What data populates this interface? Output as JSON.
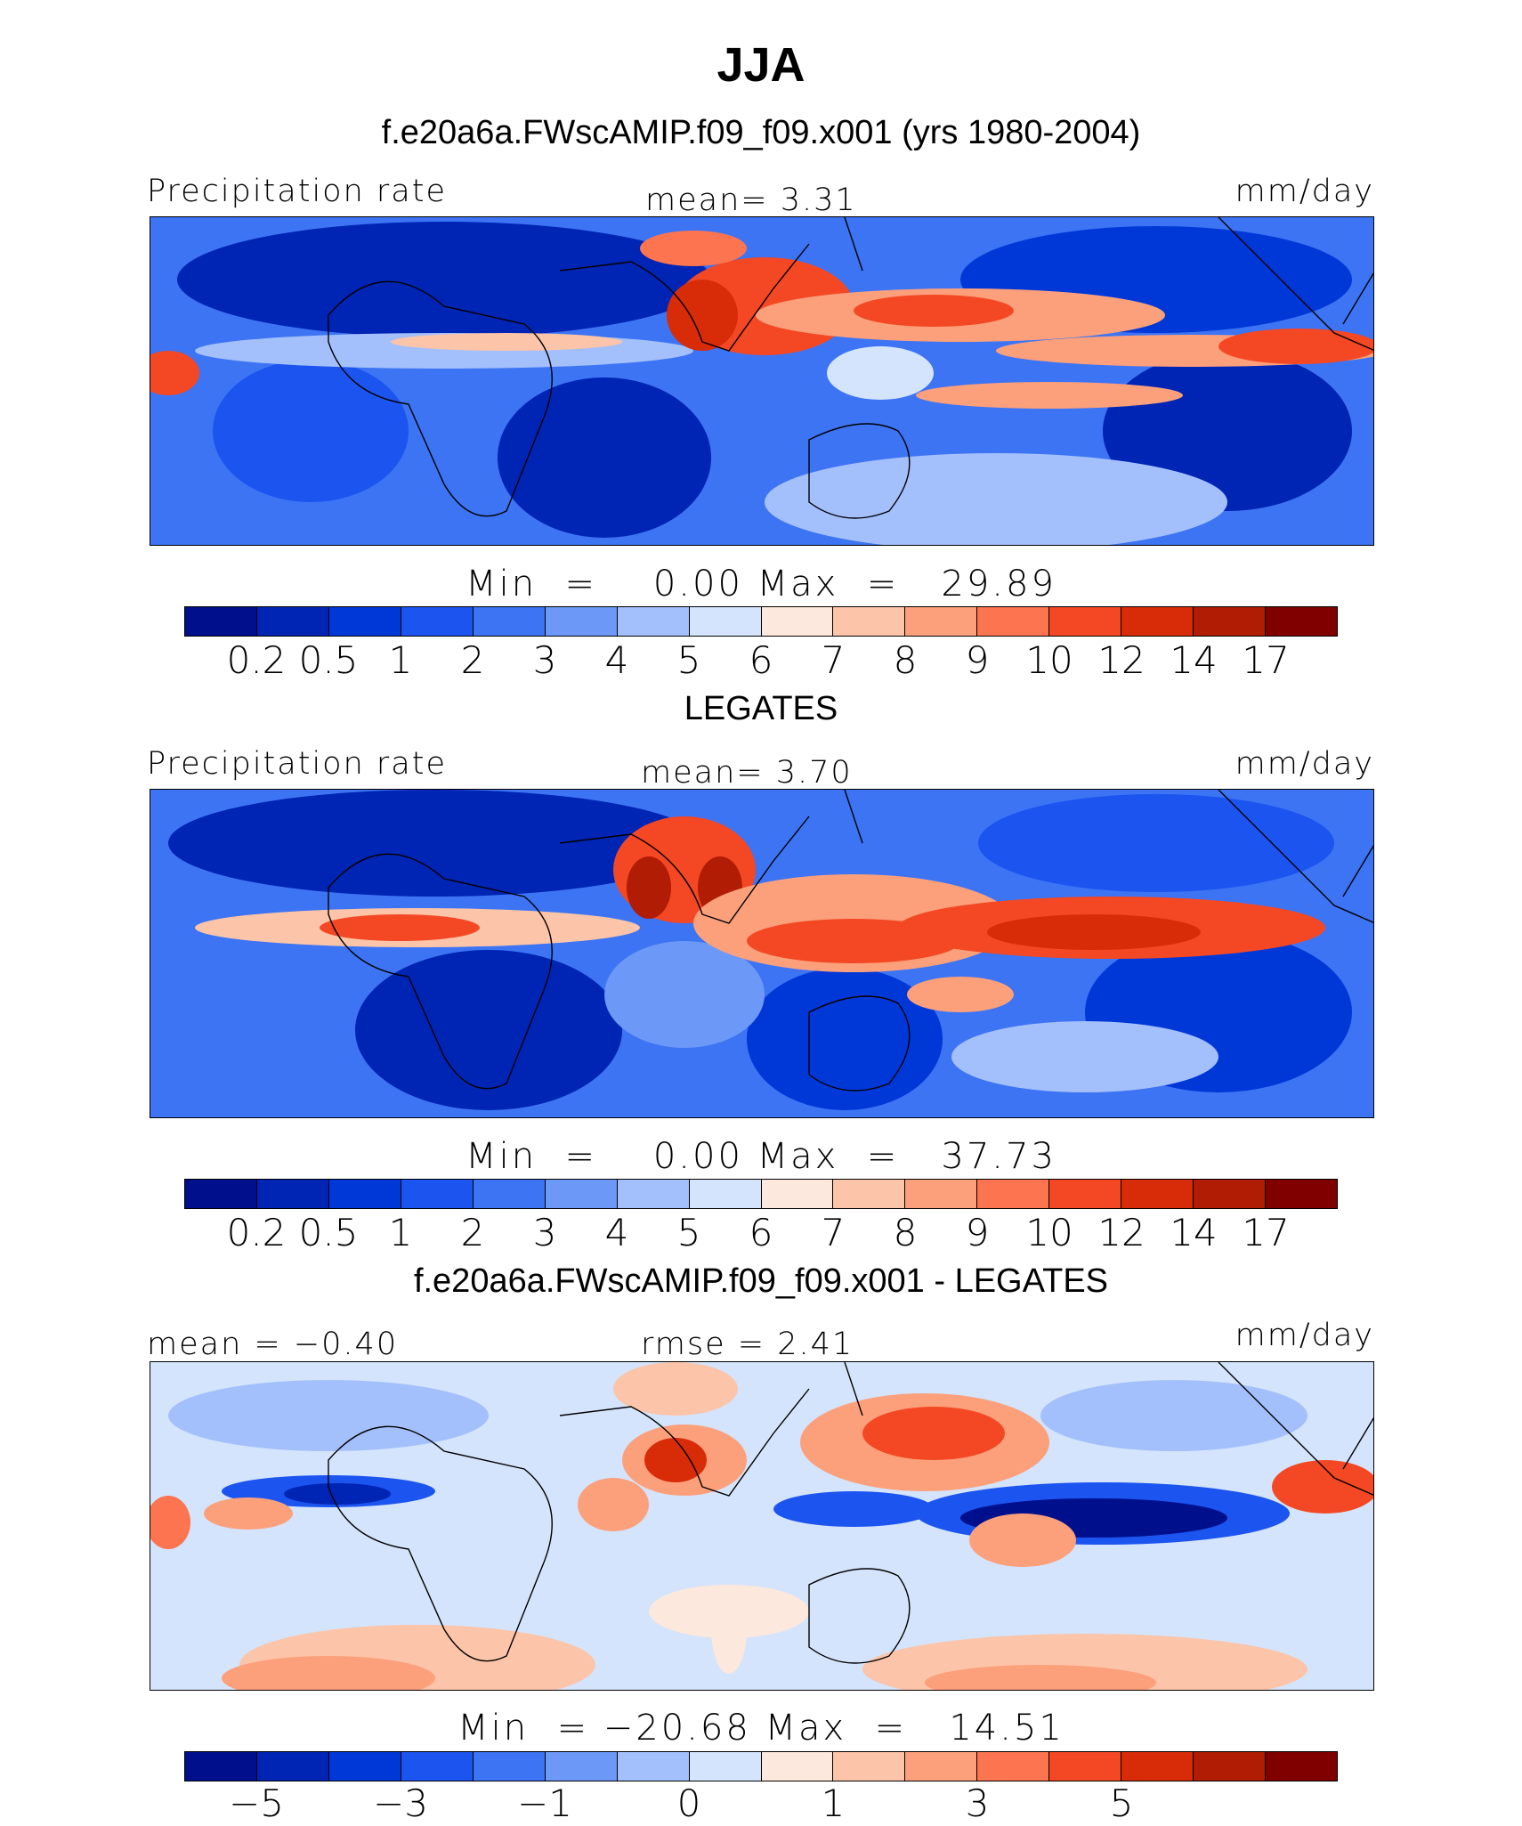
{
  "header": {
    "title": "JJA",
    "subtitle": "f.e20a6a.FWscAMIP.f09_f09.x001 (yrs 1980-2004)"
  },
  "panels": [
    {
      "heading": "",
      "left_label": "Precipitation rate",
      "center_label": "mean=   3.31",
      "right_label": "mm/day",
      "minmax": "Min  =    0.00 Max  =   29.89"
    },
    {
      "heading": "LEGATES",
      "left_label": "Precipitation rate",
      "center_label": "mean=   3.70",
      "right_label": "mm/day",
      "minmax": "Min  =    0.00 Max  =   37.73"
    },
    {
      "heading": "f.e20a6a.FWscAMIP.f09_f09.x001 - LEGATES",
      "left_label": "mean =  −0.40",
      "center_label": "rmse =   2.41",
      "right_label": "mm/day",
      "minmax": "Min  = −20.68 Max  =   14.51"
    }
  ],
  "colorbars": {
    "abs_colors": [
      "#00108c",
      "#0024b4",
      "#0038d8",
      "#1c54f0",
      "#3c74f4",
      "#6c98f8",
      "#a4c0fc",
      "#d4e4fc",
      "#fce8dc",
      "#fcc4a8",
      "#fca07c",
      "#fc7450",
      "#f44824",
      "#d82c08",
      "#b01c04",
      "#800000"
    ],
    "abs_ticks": [
      "0.2",
      "0.5",
      "1",
      "2",
      "3",
      "4",
      "5",
      "6",
      "7",
      "8",
      "9",
      "10",
      "12",
      "14",
      "17"
    ],
    "diff_colors": [
      "#00108c",
      "#0024b4",
      "#0038d8",
      "#1c54f0",
      "#3c74f4",
      "#6c98f8",
      "#a4c0fc",
      "#d4e4fc",
      "#fce8dc",
      "#fcc4a8",
      "#fca07c",
      "#fc7450",
      "#f44824",
      "#d82c08",
      "#b01c04",
      "#800000"
    ],
    "diff_ticks": [
      "−5",
      "−3",
      "−1",
      "0",
      "1",
      "3",
      "5"
    ]
  },
  "chart_data": [
    {
      "type": "heatmap",
      "title": "JJA",
      "subtitle": "f.e20a6a.FWscAMIP.f09_f09.x001 (yrs 1980-2004)",
      "variable": "Precipitation rate",
      "units": "mm/day",
      "mean": 3.31,
      "min": 0.0,
      "max": 29.89,
      "contour_levels": [
        0.2,
        0.5,
        1,
        2,
        3,
        4,
        5,
        6,
        7,
        8,
        9,
        10,
        12,
        14,
        17
      ]
    },
    {
      "type": "heatmap",
      "title": "LEGATES",
      "variable": "Precipitation rate",
      "units": "mm/day",
      "mean": 3.7,
      "min": 0.0,
      "max": 37.73,
      "contour_levels": [
        0.2,
        0.5,
        1,
        2,
        3,
        4,
        5,
        6,
        7,
        8,
        9,
        10,
        12,
        14,
        17
      ]
    },
    {
      "type": "heatmap",
      "title": "f.e20a6a.FWscAMIP.f09_f09.x001 - LEGATES",
      "units": "mm/day",
      "mean": -0.4,
      "rmse": 2.41,
      "min": -20.68,
      "max": 14.51,
      "tick_labels": [
        -5,
        -3,
        -1,
        0,
        1,
        3,
        5
      ]
    }
  ]
}
